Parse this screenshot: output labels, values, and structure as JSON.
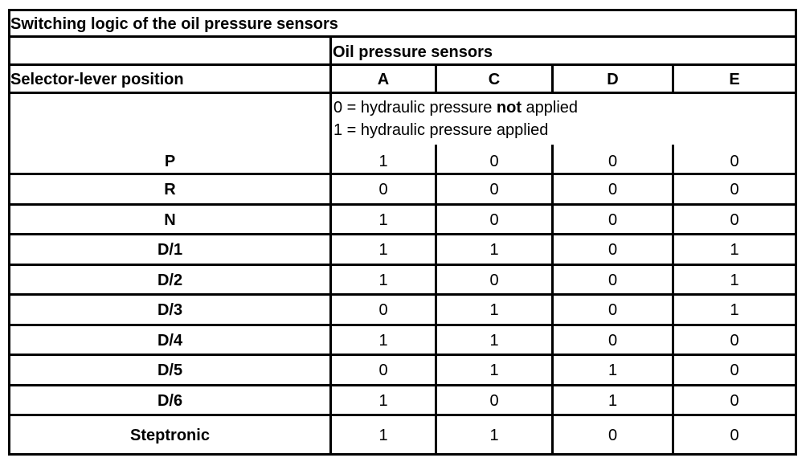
{
  "title": "Switching logic of the oil pressure sensors",
  "group_header": "Oil pressure sensors",
  "row_header": "Selector-lever position",
  "columns": [
    "A",
    "C",
    "D",
    "E"
  ],
  "legend": {
    "line0_prefix": "0 = hydraulic pressure ",
    "line0_bold": "not",
    "line0_suffix": " applied",
    "line1": "1 = hydraulic pressure applied"
  },
  "rows": [
    {
      "position": "P",
      "values": [
        "1",
        "0",
        "0",
        "0"
      ]
    },
    {
      "position": "R",
      "values": [
        "0",
        "0",
        "0",
        "0"
      ]
    },
    {
      "position": "N",
      "values": [
        "1",
        "0",
        "0",
        "0"
      ]
    },
    {
      "position": "D/1",
      "values": [
        "1",
        "1",
        "0",
        "1"
      ]
    },
    {
      "position": "D/2",
      "values": [
        "1",
        "0",
        "0",
        "1"
      ]
    },
    {
      "position": "D/3",
      "values": [
        "0",
        "1",
        "0",
        "1"
      ]
    },
    {
      "position": "D/4",
      "values": [
        "1",
        "1",
        "0",
        "0"
      ]
    },
    {
      "position": "D/5",
      "values": [
        "0",
        "1",
        "1",
        "0"
      ]
    },
    {
      "position": "D/6",
      "values": [
        "1",
        "0",
        "1",
        "0"
      ]
    },
    {
      "position": "Steptronic",
      "values": [
        "1",
        "1",
        "0",
        "0"
      ]
    }
  ]
}
